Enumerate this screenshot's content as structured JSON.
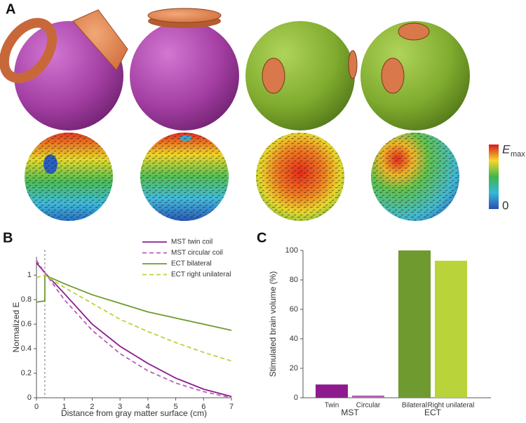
{
  "panel_label": "A",
  "colorbar": {
    "max_label": "E",
    "max_sub": "max",
    "min_label": "0"
  },
  "chart_data": [
    {
      "type": "line",
      "panel": "B",
      "xlabel": "Distance from gray matter surface (cm)",
      "ylabel": "Normalized E",
      "xlim": [
        0,
        7
      ],
      "ylim": [
        0,
        1.15
      ],
      "xticks": [
        0,
        1,
        2,
        3,
        4,
        5,
        6,
        7
      ],
      "yticks": [
        0,
        0.2,
        0.4,
        0.6,
        0.8,
        1
      ],
      "vline": 0.3,
      "series": [
        {
          "name": "MST twin coil",
          "color": "#8e1b8e",
          "dash": false,
          "x": [
            0,
            0.3,
            1,
            2,
            3,
            4,
            5,
            6,
            7
          ],
          "values": [
            1.1,
            1.02,
            0.85,
            0.6,
            0.42,
            0.28,
            0.16,
            0.07,
            0.01
          ]
        },
        {
          "name": "MST circular coil",
          "color": "#b461b4",
          "dash": true,
          "x": [
            0,
            0.3,
            1,
            2,
            3,
            4,
            5,
            6,
            7
          ],
          "values": [
            1.12,
            1.02,
            0.8,
            0.55,
            0.36,
            0.22,
            0.12,
            0.05,
            0
          ]
        },
        {
          "name": "ECT bilateral",
          "color": "#6e9a2f",
          "dash": false,
          "x": [
            0,
            0.3,
            0.3,
            1,
            2,
            3,
            4,
            5,
            6,
            7
          ],
          "values": [
            0.78,
            0.79,
            1,
            0.93,
            0.84,
            0.77,
            0.7,
            0.65,
            0.6,
            0.55
          ]
        },
        {
          "name": "ECT right unilateral",
          "color": "#b8d43a",
          "dash": true,
          "x": [
            0,
            0.3,
            1,
            2,
            3,
            4,
            5,
            6,
            7
          ],
          "values": [
            0.98,
            1,
            0.9,
            0.77,
            0.64,
            0.54,
            0.45,
            0.37,
            0.3
          ]
        }
      ]
    },
    {
      "type": "bar",
      "panel": "C",
      "ylabel": "Stimulated brain volume (%)",
      "ylim": [
        0,
        100
      ],
      "yticks": [
        0,
        20,
        40,
        60,
        80,
        100
      ],
      "groups": [
        {
          "name": "MST",
          "categories": [
            "Twin",
            "Circular"
          ],
          "values": [
            9,
            1.5
          ],
          "colors": [
            "#8e1b8e",
            "#b461b4"
          ]
        },
        {
          "name": "ECT",
          "categories": [
            "Bilateral",
            "Right unilateral"
          ],
          "values": [
            100,
            93
          ],
          "colors": [
            "#6e9a2f",
            "#b8d43a"
          ]
        }
      ]
    }
  ]
}
